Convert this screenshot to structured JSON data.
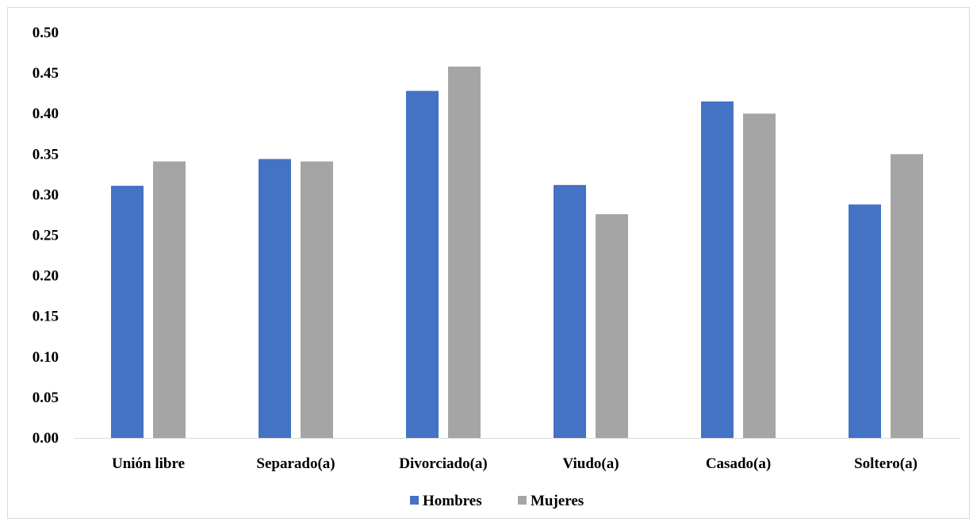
{
  "chart_data": {
    "type": "bar",
    "categories": [
      "Unión libre",
      "Separado(a)",
      "Divorciado(a)",
      "Viudo(a)",
      "Casado(a)",
      "Soltero(a)"
    ],
    "series": [
      {
        "name": "Hombres",
        "color": "#4472c4",
        "values": [
          0.311,
          0.344,
          0.428,
          0.312,
          0.415,
          0.288
        ]
      },
      {
        "name": "Mujeres",
        "color": "#a5a5a5",
        "values": [
          0.341,
          0.341,
          0.458,
          0.276,
          0.4,
          0.35
        ]
      }
    ],
    "yticks": [
      "0.00",
      "0.05",
      "0.10",
      "0.15",
      "0.20",
      "0.25",
      "0.30",
      "0.35",
      "0.40",
      "0.45",
      "0.50"
    ],
    "ylim": [
      0,
      0.5
    ],
    "grid": false,
    "legend_position": "bottom",
    "title": "",
    "xlabel": "",
    "ylabel": ""
  }
}
